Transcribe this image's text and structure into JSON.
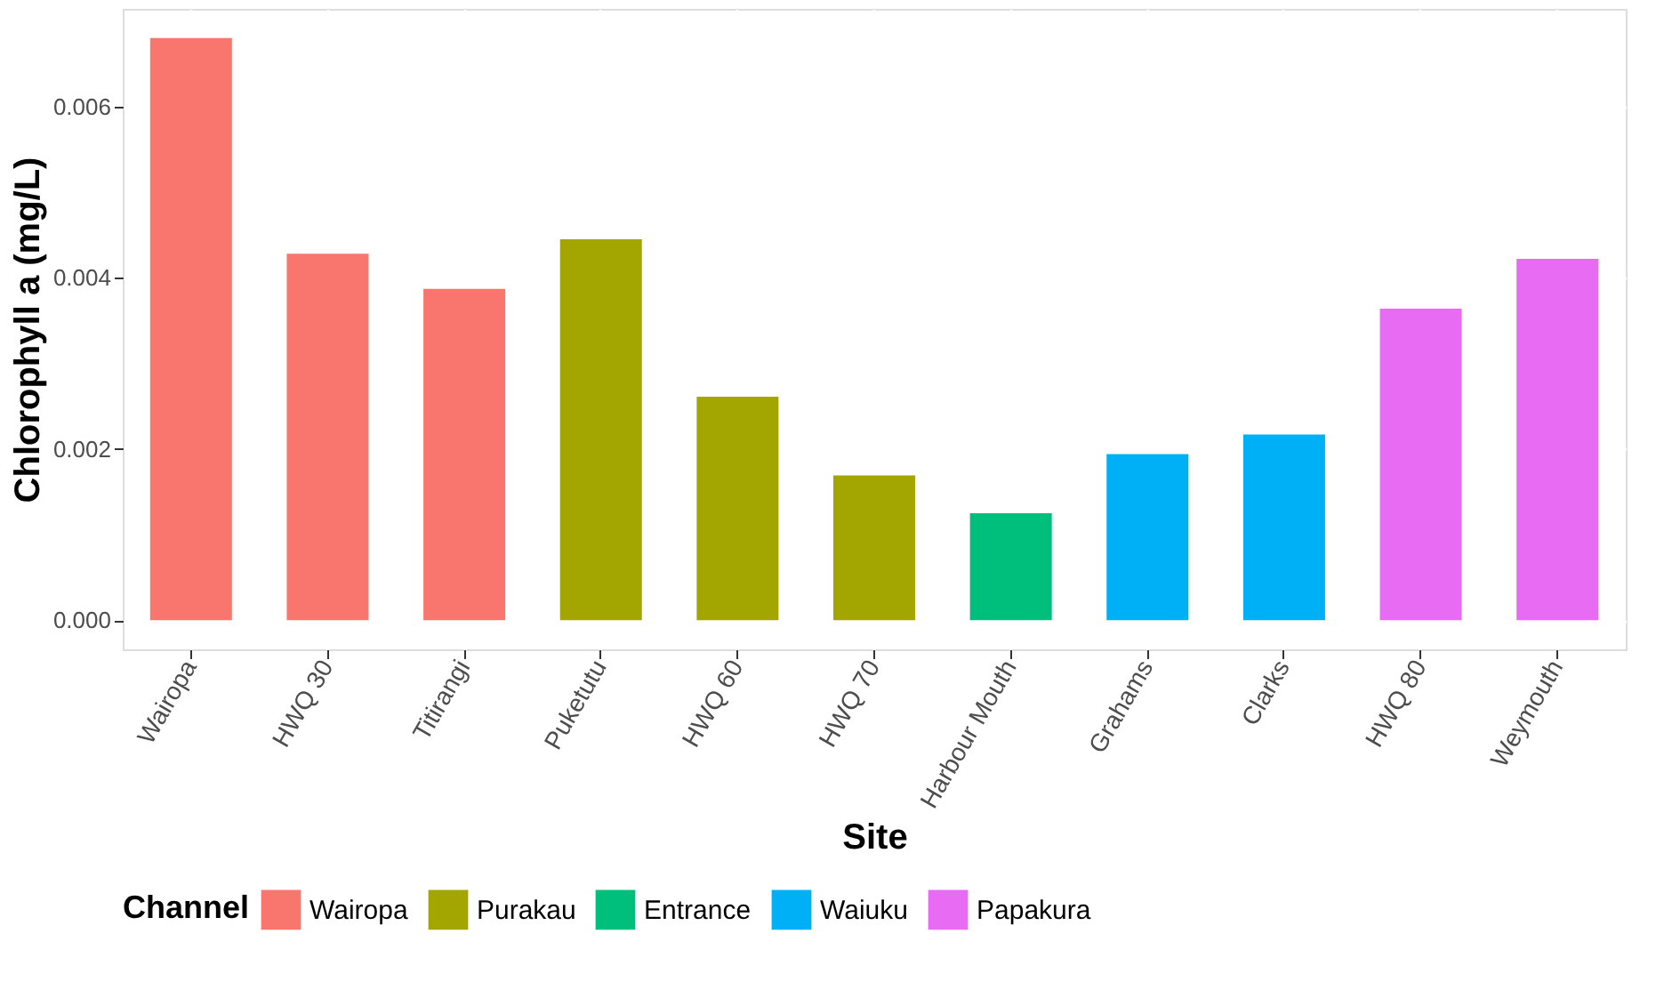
{
  "chart_data": {
    "type": "bar",
    "xlabel": "Site",
    "ylabel": "Chlorophyll a (mg/L)",
    "legend_title": "Channel",
    "categories": [
      "Wairopa",
      "HWQ 30",
      "Titirangi",
      "Puketutu",
      "HWQ 60",
      "HWQ 70",
      "Harbour Mouth",
      "Grahams",
      "Clarks",
      "HWQ 80",
      "Weymouth"
    ],
    "series": [
      {
        "name": "Wairopa",
        "color": "#f8766d",
        "values": [
          0.0068,
          0.00428,
          0.00387,
          null,
          null,
          null,
          null,
          null,
          null,
          null,
          null
        ]
      },
      {
        "name": "Purakau",
        "color": "#a3a500",
        "values": [
          null,
          null,
          null,
          0.00445,
          0.00261,
          0.00169,
          null,
          null,
          null,
          null,
          null
        ]
      },
      {
        "name": "Entrance",
        "color": "#00bf7d",
        "values": [
          null,
          null,
          null,
          null,
          null,
          null,
          0.00125,
          null,
          null,
          null,
          null
        ]
      },
      {
        "name": "Waiuku",
        "color": "#00b0f6",
        "values": [
          null,
          null,
          null,
          null,
          null,
          null,
          null,
          0.00194,
          0.00217,
          null,
          null
        ]
      },
      {
        "name": "Papakura",
        "color": "#e76bf3",
        "values": [
          null,
          null,
          null,
          null,
          null,
          null,
          null,
          null,
          null,
          0.00364,
          0.00422
        ]
      }
    ],
    "ylim": [
      -0.00034,
      0.00714
    ],
    "yticks": [
      {
        "value": 0,
        "label": "0.000"
      },
      0.002,
      0.004,
      0.006
    ],
    "grid": true,
    "legend": "bottom"
  }
}
